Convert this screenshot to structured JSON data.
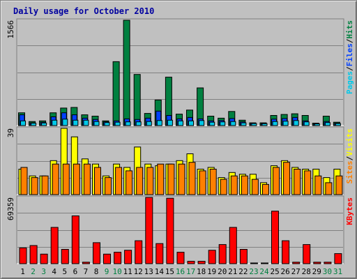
{
  "chart_data": {
    "type": "bar",
    "title": "Daily usage for October 2010",
    "categories": [
      "1",
      "2",
      "3",
      "4",
      "5",
      "6",
      "7",
      "8",
      "9",
      "10",
      "11",
      "12",
      "13",
      "14",
      "15",
      "16",
      "17",
      "18",
      "19",
      "20",
      "21",
      "22",
      "23",
      "24",
      "25",
      "26",
      "27",
      "28",
      "29",
      "30",
      "31"
    ],
    "weekend_days": [
      "2",
      "3",
      "9",
      "10",
      "16",
      "17",
      "23",
      "24",
      "30",
      "31"
    ],
    "panels": [
      {
        "name": "hits-files-pages",
        "max_label": "1566",
        "ymax": 1566,
        "legend": [
          {
            "text": "Pages",
            "color": "#00c8e8"
          },
          {
            "text": "/",
            "color": "#000000"
          },
          {
            "text": "Files",
            "color": "#0040ff"
          },
          {
            "text": "/",
            "color": "#000000"
          },
          {
            "text": "Hits",
            "color": "#008040"
          }
        ],
        "series": [
          {
            "name": "Hits",
            "color": "#008040",
            "values": [
              190,
              60,
              70,
              190,
              260,
              270,
              160,
              140,
              70,
              950,
              1566,
              760,
              180,
              380,
              720,
              170,
              230,
              560,
              140,
              110,
              210,
              80,
              40,
              40,
              150,
              165,
              175,
              150,
              35,
              140,
              50
            ]
          },
          {
            "name": "Files",
            "color": "#0040ff",
            "values": [
              160,
              40,
              50,
              130,
              190,
              160,
              110,
              90,
              55,
              70,
              100,
              90,
              110,
              215,
              150,
              100,
              120,
              100,
              70,
              75,
              105,
              55,
              35,
              30,
              95,
              105,
              120,
              70,
              25,
              60,
              35
            ]
          },
          {
            "name": "Pages",
            "color": "#00c8e8",
            "values": [
              70,
              35,
              38,
              80,
              95,
              80,
              80,
              60,
              45,
              50,
              55,
              55,
              60,
              75,
              80,
              70,
              70,
              75,
              50,
              55,
              60,
              40,
              30,
              28,
              60,
              65,
              75,
              55,
              25,
              45,
              30
            ]
          }
        ]
      },
      {
        "name": "visits-sites",
        "max_label": "39",
        "ymax": 39,
        "legend": [
          {
            "text": "Sites",
            "color": "#ff8000"
          },
          {
            "text": "/",
            "color": "#000000"
          },
          {
            "text": "Visits",
            "color": "#ffff00"
          }
        ],
        "series": [
          {
            "name": "Visits",
            "color": "#ffff00",
            "values": [
              15,
              11,
              11,
              20,
              39,
              34,
              21,
              18,
              11,
              18,
              16,
              28,
              18,
              17,
              18,
              20,
              24,
              15,
              16,
              10,
              13,
              12,
              12,
              7,
              17,
              20,
              16,
              15,
              15,
              10,
              15
            ]
          },
          {
            "name": "Sites",
            "color": "#ff8000",
            "values": [
              16,
              10,
              11,
              18,
              18,
              18,
              18,
              16,
              10,
              16,
              14,
              16,
              16,
              18,
              18,
              18,
              19,
              14,
              15,
              9,
              11,
              11,
              9,
              6,
              16,
              19,
              15,
              14,
              11,
              7,
              11
            ]
          }
        ]
      },
      {
        "name": "kbytes",
        "max_label": "69359",
        "ymax": 69359,
        "legend": [
          {
            "text": "KBytes",
            "color": "#ff0000"
          }
        ],
        "series": [
          {
            "name": "KBytes",
            "color": "#ff0000",
            "values": [
              16500,
              19000,
              10000,
              38000,
              15000,
              50000,
              1500,
              22000,
              10000,
              12000,
              14000,
              24000,
              69359,
              21000,
              68500,
              12000,
              2500,
              2500,
              14000,
              20000,
              38000,
              15000,
              400,
              400,
              55000,
              24000,
              1500,
              20000,
              1500,
              1500,
              10500
            ]
          }
        ]
      }
    ],
    "colors": {
      "background": "#c0c0c0",
      "title": "#0000a0",
      "weekday_label": "#000000",
      "weekend_label": "#008040",
      "gridline": "#808080"
    }
  }
}
